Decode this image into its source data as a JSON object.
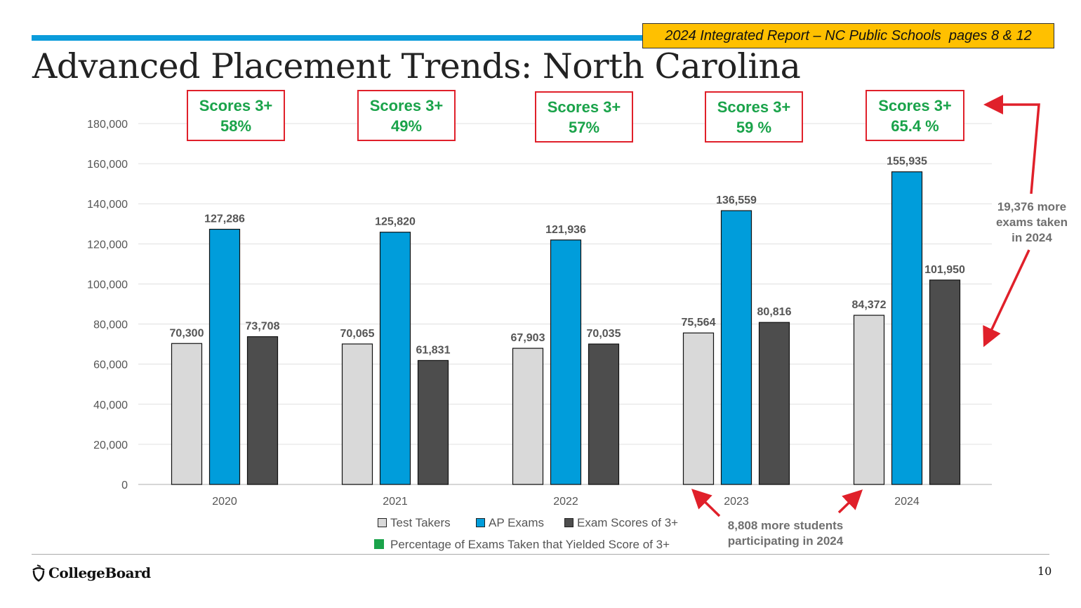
{
  "header": {
    "reference": "2024 Integrated Report – NC Public Schools  pages 8 & 12",
    "title": "Advanced Placement Trends: North Carolina",
    "accent_color": "#0B9CDB",
    "reference_bg": "#FFC000"
  },
  "score_boxes": [
    {
      "line1": "Scores 3+",
      "line2": "58%"
    },
    {
      "line1": "Scores 3+",
      "line2": "49%"
    },
    {
      "line1": "Scores 3+",
      "line2": "57%"
    },
    {
      "line1": "Scores 3+",
      "line2": "59 %"
    },
    {
      "line1": "Scores 3+",
      "line2": "65.4 %"
    }
  ],
  "chart_data": {
    "type": "bar",
    "categories": [
      "2020",
      "2021",
      "2022",
      "2023",
      "2024"
    ],
    "series": [
      {
        "name": "Test Takers",
        "color": "#D9D9D9",
        "values": [
          70300,
          70065,
          67903,
          75564,
          84372
        ],
        "labels": [
          "70,300",
          "70,065",
          "67,903",
          "75,564",
          "84,372"
        ]
      },
      {
        "name": "AP Exams",
        "color": "#009DDB",
        "values": [
          127286,
          125820,
          121936,
          136559,
          155935
        ],
        "labels": [
          "127,286",
          "125,820",
          "121,936",
          "136,559",
          "155,935"
        ]
      },
      {
        "name": "Exam Scores of 3+",
        "color": "#4D4D4D",
        "values": [
          73708,
          61831,
          70035,
          80816,
          101950
        ],
        "labels": [
          "73,708",
          "61,831",
          "70,035",
          "80,816",
          "101,950"
        ]
      }
    ],
    "ylim": [
      0,
      180000
    ],
    "yticks": [
      0,
      20000,
      40000,
      60000,
      80000,
      100000,
      120000,
      140000,
      160000,
      180000
    ],
    "ytick_labels": [
      "0",
      "20,000",
      "40,000",
      "60,000",
      "80,000",
      "100,000",
      "120,000",
      "140,000",
      "160,000",
      "180,000"
    ],
    "grid": true,
    "legend_extra": {
      "name": "Percentage of Exams Taken that Yielded Score of 3+",
      "color": "#1AA34A"
    }
  },
  "annotations": {
    "exams_line1": "19,376 more",
    "exams_line2": "exams taken",
    "exams_line3": "in 2024",
    "students_line1": "8,808 more students",
    "students_line2": "participating in 2024",
    "arrow_color": "#E0202A"
  },
  "footer": {
    "logo_text": "CollegeBoard",
    "page_number": "10"
  }
}
